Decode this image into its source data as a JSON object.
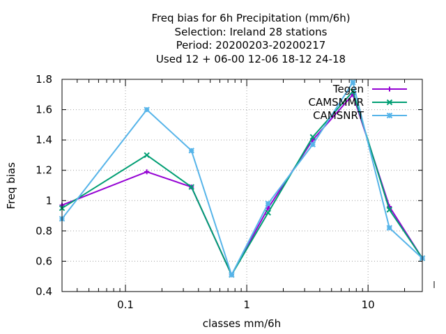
{
  "chart_data": {
    "type": "line",
    "title_lines": [
      "Freq bias  for 6h Precipitation (mm/6h)",
      "Selection: Ireland      28 stations",
      "Period: 20200203-20200217",
      "Used  12 + 06-00 12-06 18-12 24-18"
    ],
    "xlabel": "classes mm/6h",
    "ylabel": "Freq bias",
    "x_scale": "log",
    "xlim": [
      0.03,
      28
    ],
    "ylim": [
      0.4,
      1.8
    ],
    "x_ticks": [
      {
        "value": 0.1,
        "label": "0.1"
      },
      {
        "value": 1,
        "label": "1"
      },
      {
        "value": 10,
        "label": "10"
      }
    ],
    "y_ticks": [
      {
        "value": 0.4,
        "label": "0.4"
      },
      {
        "value": 0.6,
        "label": "0.6"
      },
      {
        "value": 0.8,
        "label": "0.8"
      },
      {
        "value": 1.0,
        "label": "1"
      },
      {
        "value": 1.2,
        "label": "1.2"
      },
      {
        "value": 1.4,
        "label": "1.4"
      },
      {
        "value": 1.6,
        "label": "1.6"
      },
      {
        "value": 1.8,
        "label": "1.8"
      }
    ],
    "grid": true,
    "legend_position": "top-right",
    "x": [
      0.03,
      0.15,
      0.35,
      0.75,
      1.5,
      3.5,
      7.5,
      15,
      28
    ],
    "series": [
      {
        "name": "Tegen",
        "color": "#9400d3",
        "marker": "plus",
        "values": [
          0.97,
          1.19,
          1.09,
          0.51,
          0.95,
          1.4,
          1.7,
          0.96,
          0.62
        ]
      },
      {
        "name": "CAMSMMR",
        "color": "#009e73",
        "marker": "cross",
        "values": [
          0.95,
          1.3,
          1.09,
          0.51,
          0.92,
          1.42,
          1.72,
          0.94,
          0.62
        ]
      },
      {
        "name": "CAMSNRT",
        "color": "#56b4e9",
        "marker": "star",
        "values": [
          0.88,
          1.6,
          1.33,
          0.51,
          0.98,
          1.37,
          1.78,
          0.82,
          0.62
        ]
      }
    ]
  }
}
